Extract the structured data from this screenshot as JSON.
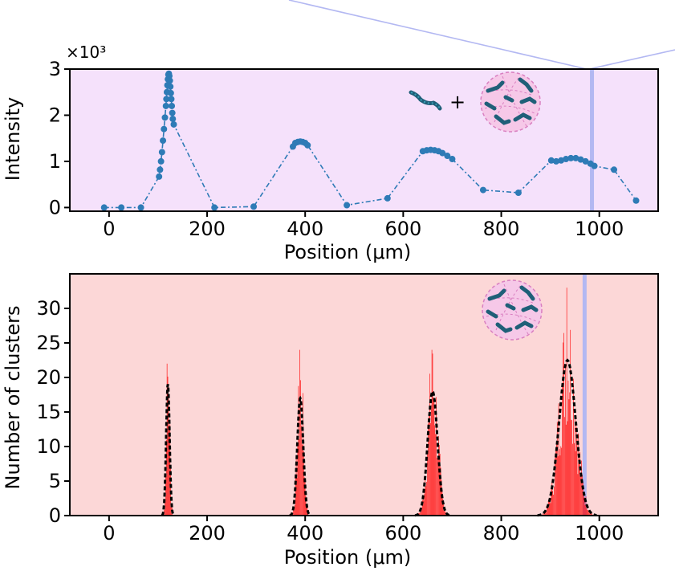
{
  "chart_data": [
    {
      "type": "line",
      "xlabel": "Position (μm)",
      "ylabel": "Intensity",
      "scale_label": "×10³",
      "xlim": [
        -80,
        1120
      ],
      "ylim": [
        -0.08,
        3.0
      ],
      "xticks": [
        0,
        200,
        400,
        600,
        800,
        1000
      ],
      "xtick_labels": [
        "0",
        "200",
        "400",
        "600",
        "800",
        "1000"
      ],
      "yticks": [
        0,
        1,
        2,
        3
      ],
      "ytick_labels": [
        "0",
        "1",
        "2",
        "3"
      ],
      "background_color": "#f5e1fb",
      "series_color": "#2e7bb6",
      "highlight_x": 985,
      "highlight_color": "#b3b8f2",
      "x": [
        -10,
        25,
        65,
        102,
        104,
        106,
        108,
        110,
        112,
        114,
        116,
        117,
        118,
        119,
        120,
        121,
        122,
        123,
        124,
        125,
        126,
        127,
        128,
        129,
        130,
        132,
        215,
        295,
        375,
        380,
        385,
        390,
        395,
        400,
        405,
        485,
        568,
        640,
        648,
        656,
        664,
        672,
        680,
        690,
        700,
        763,
        835,
        902,
        912,
        922,
        932,
        942,
        952,
        962,
        972,
        982,
        990,
        1030,
        1075
      ],
      "y": [
        0.0,
        0.0,
        0.0,
        0.67,
        0.82,
        1.0,
        1.2,
        1.45,
        1.7,
        1.95,
        2.2,
        2.35,
        2.5,
        2.65,
        2.78,
        2.88,
        2.9,
        2.85,
        2.75,
        2.62,
        2.48,
        2.35,
        2.2,
        2.05,
        1.92,
        1.8,
        0.0,
        0.02,
        1.32,
        1.4,
        1.42,
        1.43,
        1.42,
        1.4,
        1.35,
        0.05,
        0.2,
        1.22,
        1.24,
        1.25,
        1.24,
        1.22,
        1.18,
        1.12,
        1.05,
        0.38,
        0.32,
        1.02,
        1.0,
        1.02,
        1.05,
        1.07,
        1.07,
        1.04,
        1.0,
        0.95,
        0.9,
        0.82,
        0.15
      ]
    },
    {
      "type": "bar",
      "xlabel": "Position (μm)",
      "ylabel": "Number of clusters",
      "xlim": [
        -80,
        1120
      ],
      "ylim": [
        0,
        35
      ],
      "xticks": [
        0,
        200,
        400,
        600,
        800,
        1000
      ],
      "xtick_labels": [
        "0",
        "200",
        "400",
        "600",
        "800",
        "1000"
      ],
      "yticks": [
        0,
        5,
        10,
        15,
        20,
        25,
        30
      ],
      "ytick_labels": [
        "0",
        "5",
        "10",
        "15",
        "20",
        "25",
        "30"
      ],
      "background_color": "#fcd7d7",
      "bar_color": "#ff0000",
      "fit_color": "#000000",
      "highlight_x": 970,
      "highlight_color": "#b3b8f2",
      "peaks": [
        {
          "center": 120,
          "sigma": 3.5,
          "height": 19,
          "max_bar": 22
        },
        {
          "center": 390,
          "sigma": 6,
          "height": 17,
          "max_bar": 24
        },
        {
          "center": 660,
          "sigma": 10,
          "height": 18,
          "max_bar": 24
        },
        {
          "center": 935,
          "sigma": 17,
          "height": 22.5,
          "max_bar": 33
        }
      ]
    }
  ]
}
